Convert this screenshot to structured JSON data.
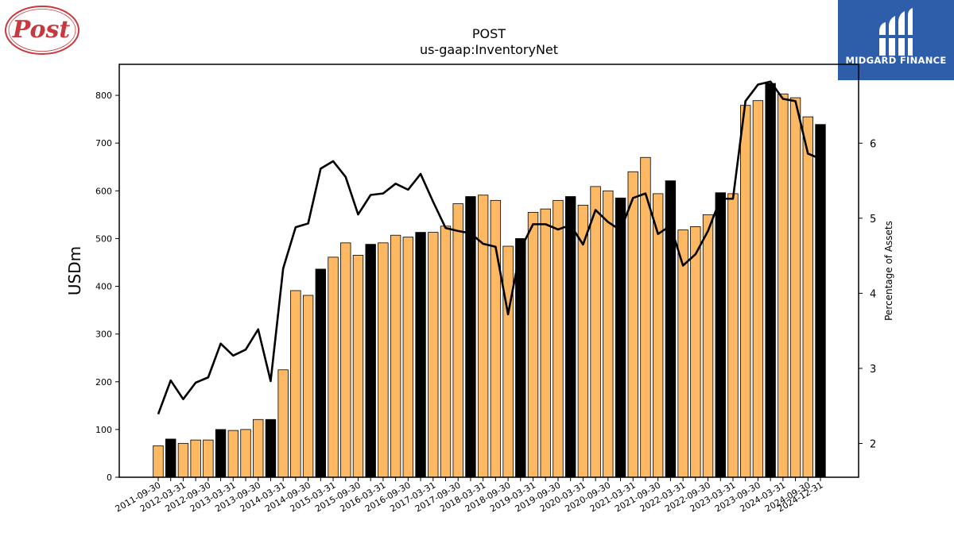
{
  "chart_data": {
    "type": "bar",
    "title": "POST",
    "subtitle": "us-gaap:InventoryNet",
    "ylabel": "USDm",
    "y2label": "Percentage of Assets",
    "ylim": [
      0,
      865
    ],
    "y2lim": [
      1.55,
      7.05
    ],
    "yticks": [
      0,
      100,
      200,
      300,
      400,
      500,
      600,
      700,
      800
    ],
    "y2ticks": [
      2,
      3,
      4,
      5,
      6
    ],
    "categories": [
      "2011-09-30",
      "2011-12-31",
      "2012-03-31",
      "2012-06-30",
      "2012-09-30",
      "2012-12-31",
      "2013-03-31",
      "2013-06-30",
      "2013-09-30",
      "2013-12-31",
      "2014-03-31",
      "2014-06-30",
      "2014-09-30",
      "2014-12-31",
      "2015-03-31",
      "2015-06-30",
      "2015-09-30",
      "2015-12-31",
      "2016-03-31",
      "2016-06-30",
      "2016-09-30",
      "2016-12-31",
      "2017-03-31",
      "2017-06-30",
      "2017-09-30",
      "2017-12-31",
      "2018-03-31",
      "2018-06-30",
      "2018-09-30",
      "2018-12-31",
      "2019-03-31",
      "2019-06-30",
      "2019-09-30",
      "2019-12-31",
      "2020-03-31",
      "2020-06-30",
      "2020-09-30",
      "2020-12-31",
      "2021-03-31",
      "2021-06-30",
      "2021-09-30",
      "2021-12-31",
      "2022-03-31",
      "2022-06-30",
      "2022-09-30",
      "2022-12-31",
      "2023-03-31",
      "2023-06-30",
      "2023-09-30",
      "2023-12-31",
      "2024-03-31",
      "2024-06-30",
      "2024-09-30",
      "2024-12-31"
    ],
    "series": [
      {
        "type": "bar",
        "values": [
          66,
          80,
          71,
          78,
          78,
          100,
          98,
          100,
          121,
          121,
          225,
          391,
          381,
          436,
          461,
          491,
          465,
          488,
          491,
          507,
          503,
          513,
          513,
          526,
          573,
          588,
          591,
          580,
          484,
          500,
          555,
          562,
          580,
          588,
          570,
          609,
          600,
          585,
          640,
          670,
          594,
          621,
          518,
          525,
          550,
          596,
          594,
          779,
          789,
          825,
          803,
          795,
          755,
          739
        ],
        "fiscal_year_end": [
          false,
          true,
          false,
          false,
          false,
          true,
          false,
          false,
          false,
          true,
          false,
          false,
          false,
          true,
          false,
          false,
          false,
          true,
          false,
          false,
          false,
          true,
          false,
          false,
          false,
          true,
          false,
          false,
          false,
          true,
          false,
          false,
          false,
          true,
          false,
          false,
          false,
          true,
          false,
          false,
          false,
          true,
          false,
          false,
          false,
          true,
          false,
          false,
          false,
          true,
          false,
          false,
          false,
          true
        ]
      },
      {
        "type": "line",
        "values": [
          2.39,
          2.84,
          2.59,
          2.81,
          2.88,
          3.33,
          3.17,
          3.25,
          3.52,
          2.83,
          4.33,
          4.88,
          4.93,
          5.66,
          5.76,
          5.55,
          5.05,
          5.31,
          5.33,
          5.46,
          5.38,
          5.59,
          5.22,
          4.87,
          4.83,
          4.8,
          4.66,
          4.62,
          3.72,
          4.59,
          4.92,
          4.92,
          4.85,
          4.91,
          4.65,
          5.11,
          4.95,
          4.84,
          5.27,
          5.33,
          4.79,
          4.9,
          4.37,
          4.52,
          4.83,
          5.26,
          5.26,
          6.56,
          6.78,
          6.82,
          6.59,
          6.56,
          5.86,
          5.79
        ]
      }
    ],
    "colors": {
      "bar_regular": "#FDB863",
      "bar_fiscal_year_end": "#000000",
      "bar_edge": "#000000",
      "line": "#000000"
    },
    "xtick_step": 2,
    "grid": false
  },
  "logos": {
    "post": {
      "text": "Post",
      "color": "#C8383E"
    },
    "midgard": {
      "text": "MIDGARD FINANCE",
      "background": "#2E5DAA"
    }
  }
}
